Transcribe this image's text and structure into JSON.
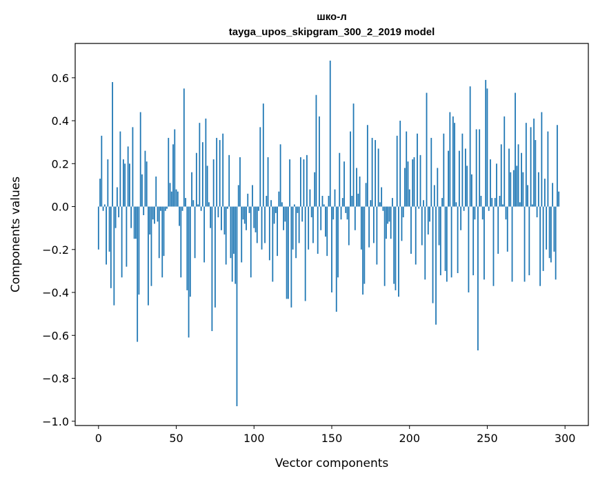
{
  "chart_data": {
    "type": "bar",
    "title": "шко-л",
    "subtitle": "tayga_upos_skipgram_300_2_2019 model",
    "xlabel": "Vector components",
    "ylabel": "Components values",
    "xlim": [
      -15,
      315
    ],
    "ylim": [
      -1.02,
      0.76
    ],
    "xticks": [
      0,
      50,
      100,
      150,
      200,
      250,
      300
    ],
    "xtick_labels": [
      "0",
      "50",
      "100",
      "150",
      "200",
      "250",
      "300"
    ],
    "yticks": [
      0.6,
      0.4,
      0.2,
      0.0,
      -0.2,
      -0.4,
      -0.6,
      -0.8,
      -1.0
    ],
    "ytick_labels": [
      "0.6",
      "0.4",
      "0.2",
      "0.0",
      "−0.2",
      "−0.4",
      "−0.6",
      "−0.8",
      "−1.0"
    ],
    "grid": false,
    "bar_color": "#1f77b4",
    "values": [
      -0.2,
      0.13,
      0.33,
      -0.02,
      0.01,
      -0.27,
      0.22,
      -0.21,
      -0.38,
      0.58,
      -0.46,
      -0.1,
      0.09,
      -0.05,
      0.35,
      -0.33,
      0.22,
      0.2,
      -0.28,
      0.28,
      0.2,
      -0.1,
      0.37,
      -0.15,
      -0.15,
      -0.63,
      -0.41,
      0.44,
      0.15,
      -0.04,
      0.26,
      0.21,
      -0.46,
      -0.13,
      -0.37,
      -0.06,
      -0.08,
      0.14,
      -0.07,
      -0.24,
      -0.02,
      -0.33,
      -0.23,
      -0.02,
      -0.01,
      0.32,
      0.11,
      0.07,
      0.29,
      0.36,
      0.08,
      0.07,
      -0.09,
      -0.33,
      -0.02,
      0.55,
      0.04,
      -0.39,
      -0.61,
      -0.42,
      0.16,
      0.03,
      -0.24,
      0.25,
      0.01,
      0.39,
      -0.02,
      0.3,
      -0.26,
      0.41,
      0.19,
      0.02,
      -0.1,
      -0.58,
      0.22,
      -0.47,
      0.32,
      -0.05,
      0.31,
      -0.11,
      0.34,
      -0.13,
      -0.27,
      -0.01,
      0.24,
      -0.24,
      -0.35,
      -0.22,
      -0.36,
      -0.93,
      0.1,
      0.23,
      -0.26,
      -0.06,
      -0.08,
      -0.11,
      0.06,
      -0.03,
      -0.33,
      0.1,
      -0.1,
      -0.12,
      -0.17,
      -0.02,
      0.37,
      -0.2,
      0.48,
      -0.17,
      0.05,
      0.23,
      -0.25,
      0.03,
      -0.35,
      -0.08,
      -0.03,
      -0.23,
      0.07,
      0.29,
      0.02,
      -0.11,
      -0.07,
      -0.43,
      -0.43,
      0.22,
      -0.47,
      -0.2,
      0.01,
      -0.24,
      -0.03,
      -0.17,
      0.23,
      -0.07,
      0.22,
      -0.44,
      0.24,
      -0.2,
      0.08,
      -0.05,
      -0.17,
      0.16,
      0.52,
      -0.22,
      0.42,
      -0.11,
      0.05,
      0.01,
      -0.14,
      -0.23,
      0.05,
      0.68,
      -0.4,
      -0.06,
      0.08,
      -0.49,
      -0.33,
      0.25,
      -0.06,
      0.04,
      0.21,
      -0.03,
      -0.06,
      -0.18,
      0.35,
      0.05,
      0.48,
      -0.11,
      0.18,
      0.06,
      0.14,
      -0.2,
      -0.41,
      -0.36,
      0.11,
      0.38,
      -0.19,
      0.03,
      0.32,
      -0.17,
      0.31,
      -0.27,
      0.27,
      0.02,
      0.09,
      -0.02,
      -0.37,
      -0.15,
      -0.08,
      -0.07,
      -0.15,
      0.04,
      -0.36,
      -0.39,
      0.33,
      -0.42,
      0.4,
      -0.16,
      -0.05,
      0.18,
      0.35,
      0.21,
      0.08,
      -0.22,
      0.22,
      0.23,
      -0.27,
      0.34,
      -0.01,
      0.24,
      -0.18,
      0.03,
      -0.34,
      0.53,
      -0.13,
      -0.07,
      0.32,
      -0.45,
      0.1,
      -0.55,
      0.18,
      -0.18,
      -0.32,
      0.04,
      0.34,
      -0.3,
      -0.35,
      0.26,
      0.44,
      -0.33,
      0.42,
      0.39,
      0.02,
      -0.31,
      0.26,
      -0.11,
      0.34,
      -0.02,
      0.27,
      0.19,
      -0.4,
      0.56,
      0.15,
      -0.32,
      -0.06,
      0.36,
      -0.67,
      0.36,
      0.05,
      -0.06,
      -0.34,
      0.59,
      0.55,
      -0.02,
      0.22,
      0.04,
      -0.37,
      0.04,
      0.2,
      -0.22,
      0.05,
      0.29,
      0.01,
      0.42,
      -0.06,
      -0.21,
      0.27,
      0.16,
      -0.35,
      0.17,
      0.53,
      0.19,
      0.29,
      0.02,
      0.25,
      0.16,
      -0.35,
      0.39,
      0.1,
      -0.32,
      0.37,
      0.01,
      0.41,
      0.31,
      -0.05,
      0.16,
      -0.37,
      0.44,
      -0.3,
      0.13,
      -0.2,
      0.35,
      -0.24,
      -0.26,
      0.11,
      -0.21,
      -0.34,
      0.38,
      0.07
    ]
  }
}
